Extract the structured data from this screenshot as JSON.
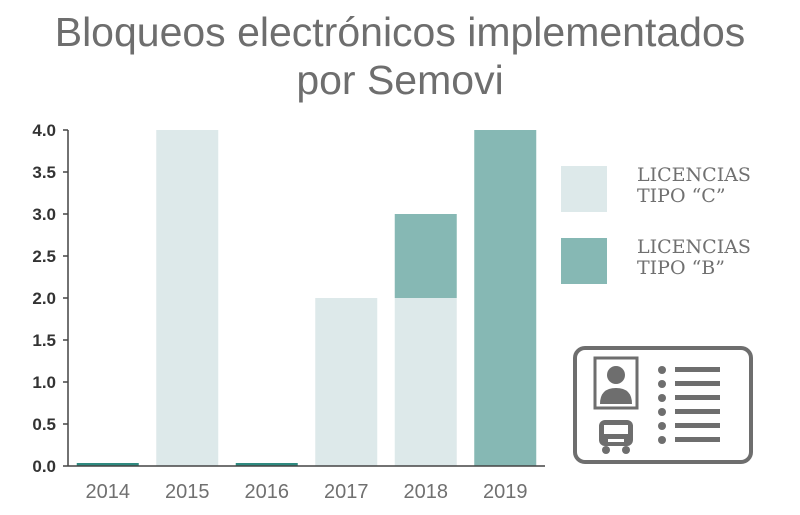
{
  "chart_data": {
    "type": "bar",
    "stacked": true,
    "title_lines": [
      "Bloqueos electrónicos implementados",
      "por Semovi"
    ],
    "categories": [
      "2014",
      "2015",
      "2016",
      "2017",
      "2018",
      "2019"
    ],
    "series": [
      {
        "name_lines": [
          "LICENCIAS",
          "TIPO “C”"
        ],
        "color": "#dde9ea",
        "values": [
          0,
          4,
          0,
          2,
          2,
          0
        ]
      },
      {
        "name_lines": [
          "LICENCIAS",
          "TIPO “B”"
        ],
        "color": "#86b8b4",
        "values": [
          0,
          0,
          0,
          0,
          1,
          4
        ]
      }
    ],
    "zero_marker_color": "#2f8a80",
    "ylim": [
      0,
      4
    ],
    "yticks": [
      "0.0",
      "0.5",
      "1.0",
      "1.5",
      "2.0",
      "2.5",
      "3.0",
      "3.5",
      "4.0"
    ],
    "grid": false,
    "legend_position": "right"
  },
  "icon": {
    "name": "license-card-icon",
    "color": "#6e6e6e"
  }
}
